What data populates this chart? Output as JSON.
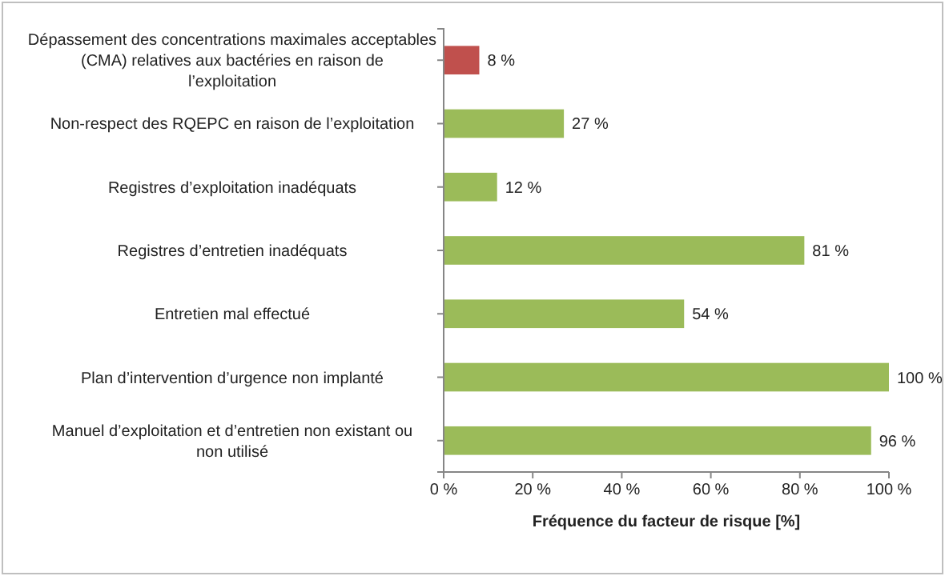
{
  "chart_data": {
    "type": "bar",
    "orientation": "horizontal",
    "xlabel": "Fréquence du facteur de risque [%]",
    "categories": [
      "Dépassement des concentrations maximales acceptables (CMA) relatives aux bactéries en raison de l’exploitation",
      "Non-respect des RQEPC en raison de l’exploitation",
      "Registres d’exploitation inadéquats",
      "Registres d’entretien inadéquats",
      "Entretien mal effectué",
      "Plan d’intervention d’urgence non implanté",
      "Manuel d’exploitation et d’entretien non existant ou non utilisé"
    ],
    "values": [
      8,
      27,
      12,
      81,
      54,
      100,
      96
    ],
    "colors": [
      "#c0504d",
      "#9bbb59",
      "#9bbb59",
      "#9bbb59",
      "#9bbb59",
      "#9bbb59",
      "#9bbb59"
    ],
    "value_labels": [
      "8 %",
      "27 %",
      "12 %",
      "81 %",
      "54 %",
      "100 %",
      "96 %"
    ],
    "xlim": [
      0,
      100
    ],
    "xticks": [
      {
        "value": 0,
        "label": "0 %"
      },
      {
        "value": 20,
        "label": "20 %"
      },
      {
        "value": 40,
        "label": "40 %"
      },
      {
        "value": 60,
        "label": "60 %"
      },
      {
        "value": 80,
        "label": "80 %"
      },
      {
        "value": 100,
        "label": "100 %"
      }
    ],
    "grid": false
  }
}
